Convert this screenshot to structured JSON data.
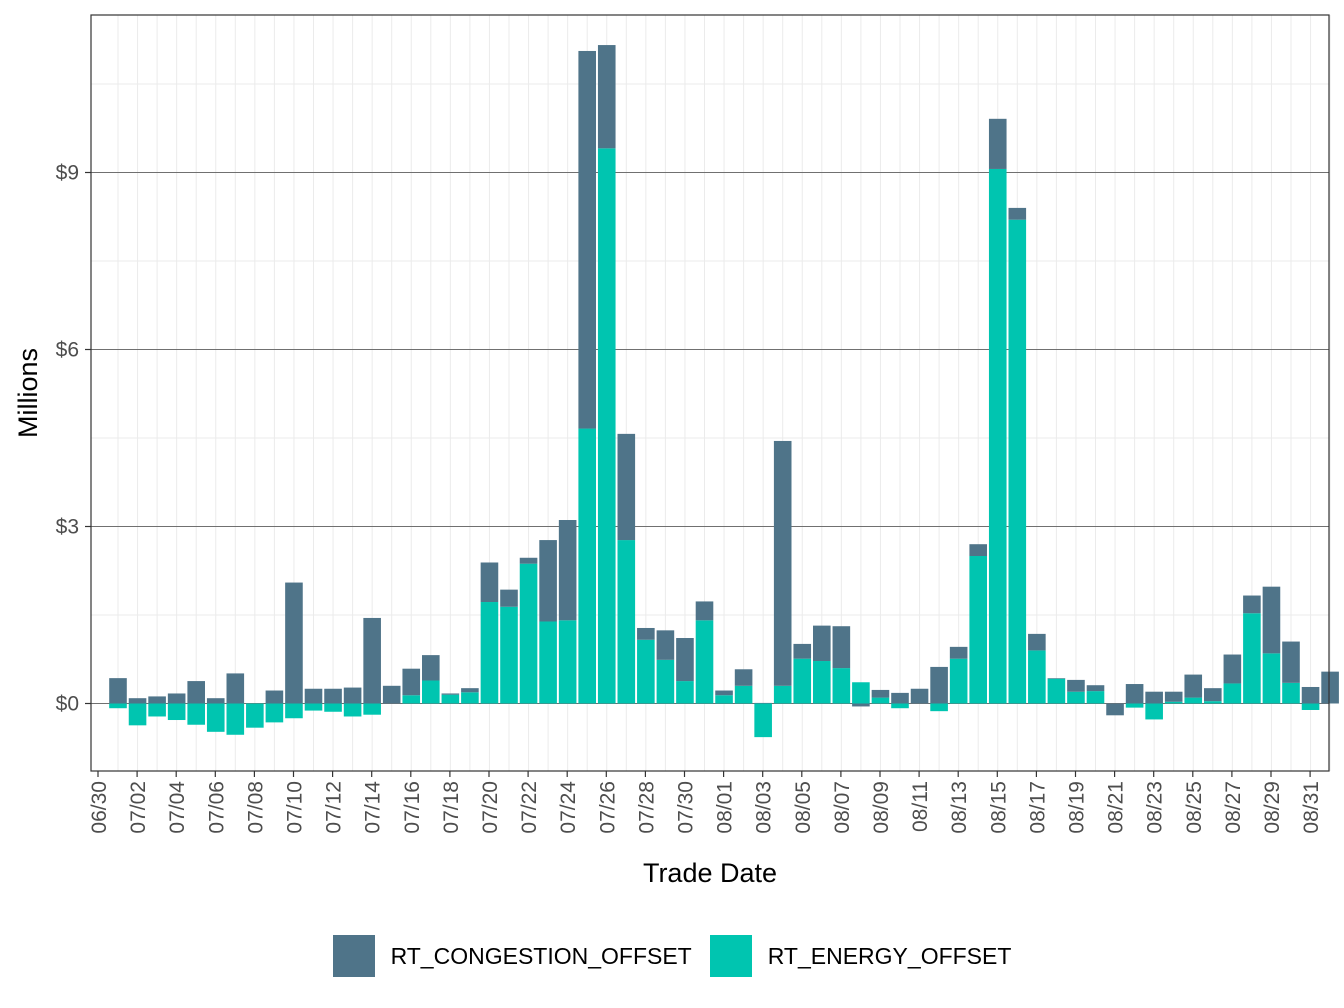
{
  "colors": {
    "congestion": "#4f7489",
    "energy": "#00c5b0",
    "gridMajor": "#707070",
    "gridMinor": "#ebebeb",
    "panelBorder": "#333333",
    "axisText": "#4d4d4d"
  },
  "chart_data": {
    "type": "bar",
    "stacked": true,
    "xlabel": "Trade Date",
    "ylabel": "Millions",
    "ylim": [
      -1.15,
      11.6
    ],
    "yticks": [
      0,
      3,
      6,
      9
    ],
    "ytick_labels": [
      "$0",
      "$3",
      "$6",
      "$9"
    ],
    "grid": true,
    "legend_position": "bottom",
    "xtick_labels": [
      "06/30",
      "07/02",
      "07/04",
      "07/06",
      "07/08",
      "07/10",
      "07/12",
      "07/14",
      "07/16",
      "07/18",
      "07/20",
      "07/22",
      "07/24",
      "07/26",
      "07/28",
      "07/30",
      "08/01",
      "08/03",
      "08/05",
      "08/07",
      "08/09",
      "08/11",
      "08/13",
      "08/15",
      "08/17",
      "08/19",
      "08/21",
      "08/23",
      "08/25",
      "08/27",
      "08/29",
      "08/31"
    ],
    "categories": [
      "06/30",
      "07/01",
      "07/02",
      "07/03",
      "07/04",
      "07/05",
      "07/06",
      "07/07",
      "07/08",
      "07/09",
      "07/10",
      "07/11",
      "07/12",
      "07/13",
      "07/14",
      "07/15",
      "07/16",
      "07/17",
      "07/18",
      "07/19",
      "07/20",
      "07/21",
      "07/22",
      "07/23",
      "07/24",
      "07/25",
      "07/26",
      "07/27",
      "07/28",
      "07/29",
      "07/30",
      "07/31",
      "08/01",
      "08/02",
      "08/03",
      "08/04",
      "08/05",
      "08/06",
      "08/07",
      "08/08",
      "08/09",
      "08/10",
      "08/11",
      "08/12",
      "08/13",
      "08/14",
      "08/15",
      "08/16",
      "08/17",
      "08/18",
      "08/19",
      "08/20",
      "08/21",
      "08/22",
      "08/23",
      "08/24",
      "08/25",
      "08/26",
      "08/27",
      "08/28",
      "08/29",
      "08/30",
      "08/31"
    ],
    "series": [
      {
        "name": "RT_CONGESTION_OFFSET",
        "values": [
          0.43,
          0.09,
          0.12,
          0.17,
          0.38,
          0.09,
          0.51,
          0.0,
          0.22,
          2.05,
          0.25,
          0.25,
          0.27,
          1.45,
          0.3,
          0.45,
          0.43,
          0.02,
          0.07,
          0.67,
          0.29,
          0.1,
          1.38,
          1.7,
          6.4,
          1.75,
          1.8,
          0.2,
          0.5,
          0.73,
          0.32,
          0.08,
          0.28,
          0.01,
          4.15,
          0.25,
          0.6,
          0.71,
          -0.05,
          0.13,
          0.18,
          0.25,
          0.62,
          0.2,
          0.2,
          0.85,
          0.2,
          0.28,
          0.01,
          0.2,
          0.1,
          -0.2,
          0.33,
          0.2,
          0.17,
          0.39,
          0.22,
          0.49,
          0.3,
          1.13,
          0.7,
          0.28,
          0.54
        ]
      },
      {
        "name": "RT_ENERGY_OFFSET",
        "values": [
          -0.08,
          -0.37,
          -0.22,
          -0.28,
          -0.36,
          -0.48,
          -0.53,
          -0.41,
          -0.32,
          -0.25,
          -0.12,
          -0.14,
          -0.22,
          -0.19,
          0.0,
          0.14,
          0.39,
          0.15,
          0.19,
          1.72,
          1.64,
          2.37,
          1.39,
          1.41,
          4.66,
          9.41,
          2.77,
          1.08,
          0.74,
          0.38,
          1.41,
          0.14,
          0.3,
          -0.57,
          0.3,
          0.76,
          0.72,
          0.6,
          0.36,
          0.1,
          -0.08,
          0.0,
          -0.13,
          0.76,
          2.5,
          9.06,
          8.2,
          0.9,
          0.42,
          0.2,
          0.21,
          0.0,
          -0.07,
          -0.27,
          0.03,
          0.1,
          0.04,
          0.34,
          1.53,
          0.85,
          0.35,
          -0.11,
          0.0
        ]
      }
    ]
  }
}
